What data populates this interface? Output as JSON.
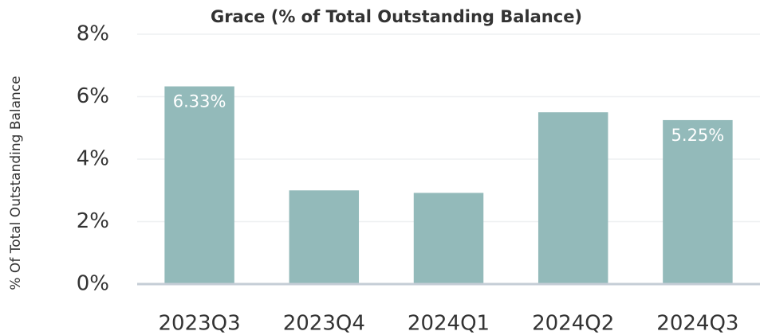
{
  "chart_data": {
    "type": "bar",
    "title": "Grace (% of Total Outstanding Balance)",
    "y_label": "% Of Total Outstanding Balance",
    "categories": [
      "2023Q3",
      "2023Q4",
      "2024Q1",
      "2024Q2",
      "2024Q3"
    ],
    "values": [
      6.33,
      3.0,
      2.92,
      5.5,
      5.25
    ],
    "value_labels": [
      "6.33%",
      null,
      null,
      null,
      "5.25%"
    ],
    "color": "#93baba",
    "ylim": [
      0,
      8
    ],
    "yticks": [
      {
        "value": 0,
        "label": "0%"
      },
      {
        "value": 2,
        "label": "2%"
      },
      {
        "value": 4,
        "label": "4%"
      },
      {
        "value": 6,
        "label": "6%"
      },
      {
        "value": 8,
        "label": "8%"
      }
    ],
    "grid": true
  }
}
